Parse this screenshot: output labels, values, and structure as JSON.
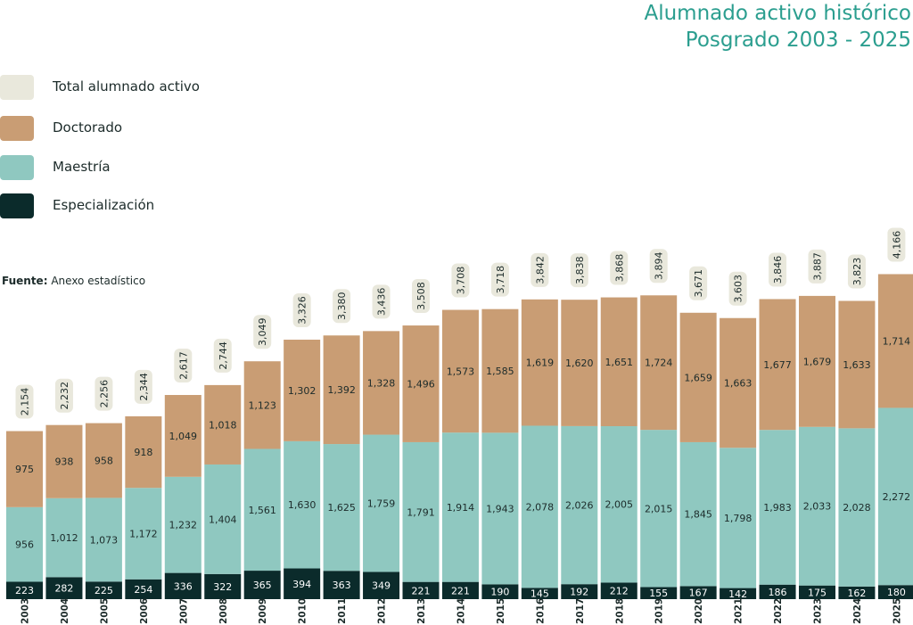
{
  "title": {
    "line1": "Alumnado activo histórico",
    "line2": "Posgrado 2003 - 2025"
  },
  "source": {
    "label": "Fuente:",
    "text": "Anexo estadístico"
  },
  "colors": {
    "total": "#e9e8dc",
    "doctorado": "#c99d74",
    "maestria": "#8fc8c0",
    "especializacion": "#0b2b2b",
    "title": "#2b9e8f"
  },
  "chart_data": {
    "type": "bar",
    "stacked": true,
    "categories": [
      "2003",
      "2004",
      "2005",
      "2006",
      "2007",
      "2008",
      "2009",
      "2010",
      "2011",
      "2012",
      "2013",
      "2014",
      "2015",
      "2016",
      "2017",
      "2018",
      "2019",
      "2020",
      "2021",
      "2022",
      "2023",
      "2024",
      "2025"
    ],
    "series": [
      {
        "name": "Especialización",
        "values": [
          223,
          282,
          225,
          254,
          336,
          322,
          365,
          394,
          363,
          349,
          221,
          221,
          190,
          145,
          192,
          212,
          155,
          167,
          142,
          186,
          175,
          162,
          180
        ]
      },
      {
        "name": "Maestría",
        "values": [
          956,
          1012,
          1073,
          1172,
          1232,
          1404,
          1561,
          1630,
          1625,
          1759,
          1791,
          1914,
          1943,
          2078,
          2026,
          2005,
          2015,
          1845,
          1798,
          1983,
          2033,
          2028,
          2272
        ]
      },
      {
        "name": "Doctorado",
        "values": [
          975,
          938,
          958,
          918,
          1049,
          1018,
          1123,
          1302,
          1392,
          1328,
          1496,
          1573,
          1585,
          1619,
          1620,
          1651,
          1724,
          1659,
          1663,
          1677,
          1679,
          1633,
          1714
        ]
      }
    ],
    "totals": {
      "name": "Total alumnado activo",
      "values": [
        2154,
        2232,
        2256,
        2344,
        2617,
        2744,
        3049,
        3326,
        3380,
        3436,
        3508,
        3708,
        3718,
        3842,
        3838,
        3868,
        3894,
        3671,
        3603,
        3846,
        3887,
        3823,
        4166
      ]
    },
    "legend": [
      "Total alumnado activo",
      "Doctorado",
      "Maestría",
      "Especialización"
    ],
    "legend_position": "top-left",
    "grid": false
  }
}
